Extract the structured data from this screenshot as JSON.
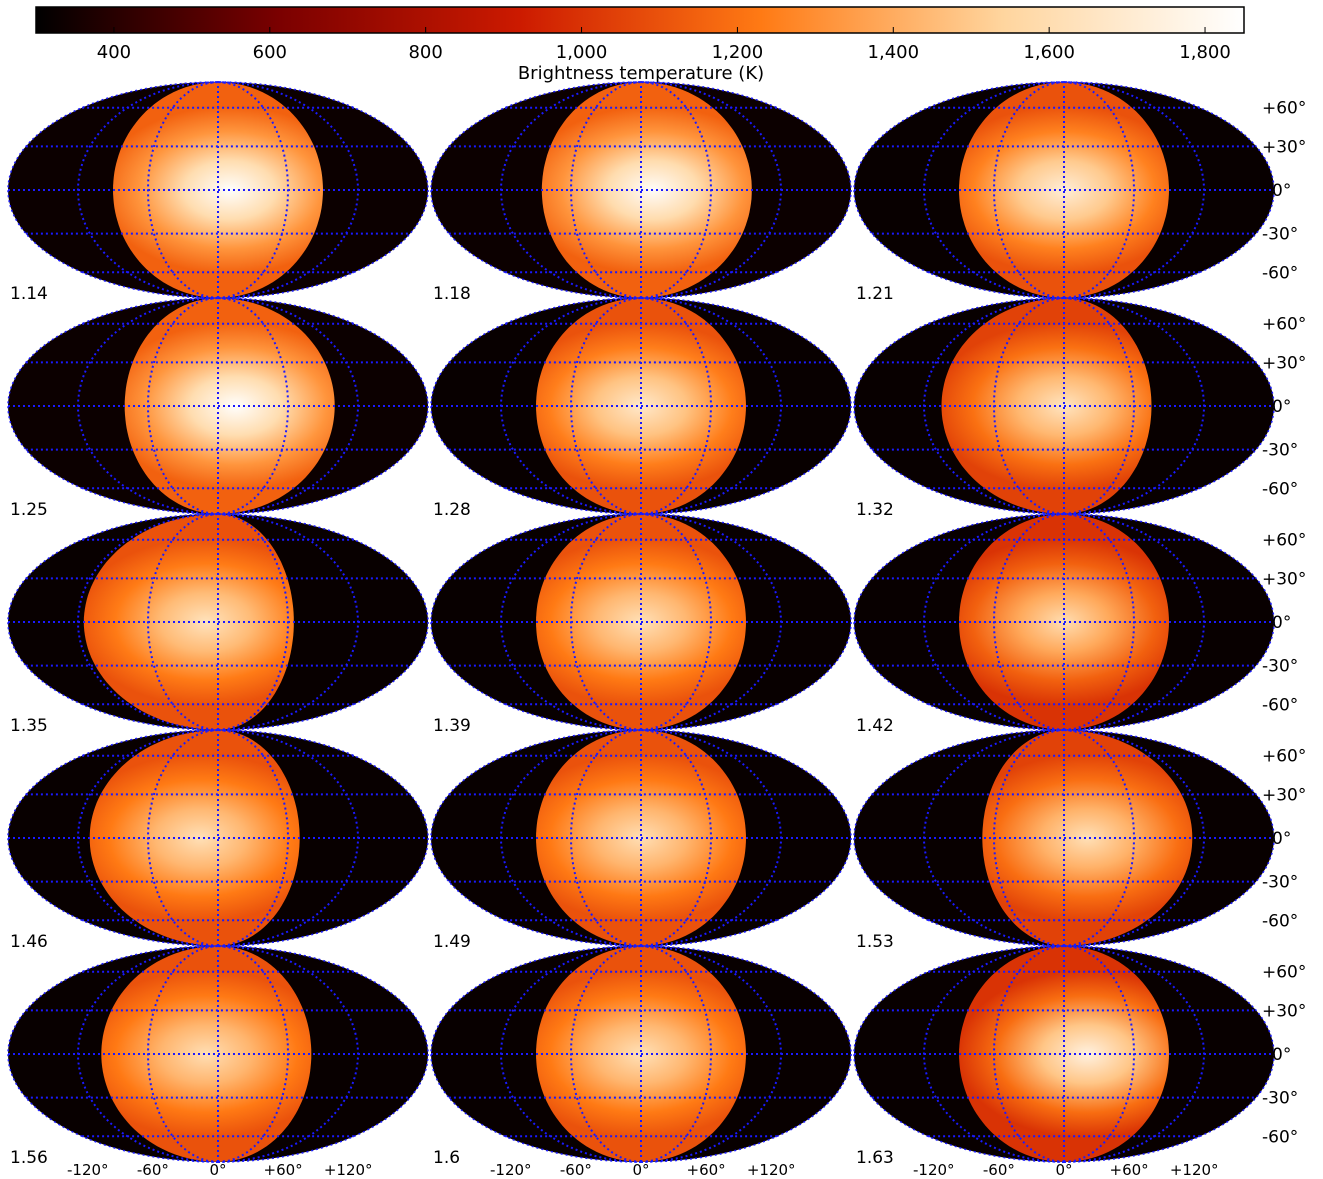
{
  "chart_data": {
    "type": "heatmap",
    "projection": "Mollweide",
    "grid": true,
    "grid_color": "#1a1aff",
    "colormap": {
      "name": "gist_heat",
      "stops": [
        "#000000",
        "#7a0000",
        "#cc1a00",
        "#ff7a14",
        "#ffd59e",
        "#ffffff"
      ],
      "range": [
        300,
        1850
      ]
    },
    "colorbar": {
      "label": "Brightness temperature (K)",
      "ticks": [
        400,
        600,
        800,
        1000,
        1200,
        1400,
        1600,
        1800
      ],
      "tick_labels": [
        "400",
        "600",
        "800",
        "1,000",
        "1,200",
        "1,400",
        "1,600",
        "1,800"
      ],
      "placement": "top"
    },
    "lat_labels": [
      "+60°",
      "+30°",
      "0°",
      "-30°",
      "-60°"
    ],
    "lon_labels": [
      "-120°",
      "-60°",
      "0°",
      "+60°",
      "+120°"
    ],
    "panels": [
      {
        "label": "1.14",
        "day_center_lon": 0,
        "hot_lon": 10,
        "t_center": 1840,
        "t_edge": 1150,
        "t_night": 330
      },
      {
        "label": "1.18",
        "day_center_lon": 5,
        "hot_lon": 10,
        "t_center": 1830,
        "t_edge": 1150,
        "t_night": 330
      },
      {
        "label": "1.21",
        "day_center_lon": 0,
        "hot_lon": 0,
        "t_center": 1720,
        "t_edge": 1100,
        "t_night": 320
      },
      {
        "label": "1.25",
        "day_center_lon": 10,
        "hot_lon": 15,
        "t_center": 1840,
        "t_edge": 1150,
        "t_night": 330
      },
      {
        "label": "1.28",
        "day_center_lon": 0,
        "hot_lon": 0,
        "t_center": 1680,
        "t_edge": 1100,
        "t_night": 320
      },
      {
        "label": "1.32",
        "day_center_lon": -15,
        "hot_lon": 0,
        "t_center": 1650,
        "t_edge": 1050,
        "t_night": 320
      },
      {
        "label": "1.35",
        "day_center_lon": -25,
        "hot_lon": -10,
        "t_center": 1640,
        "t_edge": 1100,
        "t_night": 320
      },
      {
        "label": "1.39",
        "day_center_lon": 0,
        "hot_lon": 0,
        "t_center": 1620,
        "t_edge": 1100,
        "t_night": 320
      },
      {
        "label": "1.42",
        "day_center_lon": 0,
        "hot_lon": 0,
        "t_center": 1600,
        "t_edge": 1000,
        "t_night": 320
      },
      {
        "label": "1.46",
        "day_center_lon": -20,
        "hot_lon": -15,
        "t_center": 1620,
        "t_edge": 1100,
        "t_night": 320
      },
      {
        "label": "1.49",
        "day_center_lon": 0,
        "hot_lon": 0,
        "t_center": 1610,
        "t_edge": 1100,
        "t_night": 320
      },
      {
        "label": "1.53",
        "day_center_lon": 20,
        "hot_lon": 20,
        "t_center": 1620,
        "t_edge": 1050,
        "t_night": 320
      },
      {
        "label": "1.56",
        "day_center_lon": -10,
        "hot_lon": -10,
        "t_center": 1610,
        "t_edge": 1100,
        "t_night": 320
      },
      {
        "label": "1.6",
        "day_center_lon": 0,
        "hot_lon": 0,
        "t_center": 1620,
        "t_edge": 1100,
        "t_night": 320
      },
      {
        "label": "1.63",
        "day_center_lon": 0,
        "hot_lon": 20,
        "t_center": 1750,
        "t_edge": 1000,
        "t_night": 320
      }
    ]
  }
}
